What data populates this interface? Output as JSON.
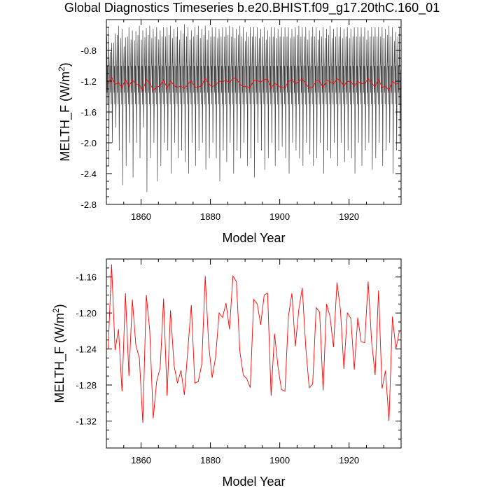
{
  "chart_data": [
    {
      "type": "line",
      "title": "Global Diagnostics Timeseries b.e20.BHIST.f09_g17.20thC.160_01",
      "xlabel": "Model Year",
      "ylabel": "MELTH_F (W/m2)",
      "ylabel_main": "MELTH_F (W/m",
      "ylabel_sup": "2",
      "ylabel_close": ")",
      "xlim": [
        1850,
        1935
      ],
      "ylim": [
        -2.8,
        -0.4
      ],
      "xticks": [
        1860,
        1880,
        1900,
        1920
      ],
      "xtick_labels": [
        "1860",
        "1880",
        "1900",
        "1920"
      ],
      "yticks": [
        -2.8,
        -2.4,
        -2.0,
        -1.6,
        -1.2,
        -0.8
      ],
      "ytick_labels": [
        "-2.8",
        "-2.4",
        "-2.0",
        "-1.6",
        "-1.2",
        "-0.8"
      ],
      "series": [
        {
          "style": "monthly",
          "color": "#000000",
          "values_monthly": {
            "year_start": 1850,
            "year_end": 1934,
            "annual_peak_high": [
              -0.62,
              -0.82,
              -0.7,
              -0.6,
              -0.64,
              -0.75,
              -0.62,
              -0.66,
              -0.67,
              -0.6,
              -0.66,
              -0.63,
              -0.6,
              -0.64,
              -0.62,
              -0.66,
              -0.62,
              -0.62,
              -0.6,
              -0.64,
              -0.62,
              -0.66,
              -0.58,
              -0.62,
              -0.66,
              -0.62,
              -0.6,
              -0.64,
              -0.6,
              -0.66,
              -0.62,
              -0.62,
              -0.64,
              -0.62,
              -0.62,
              -0.6,
              -0.62,
              -0.64,
              -0.6,
              -0.62,
              -0.68,
              -0.62,
              -0.62,
              -0.62,
              -0.64,
              -0.62,
              -0.66,
              -0.62,
              -0.62,
              -0.64,
              -0.62,
              -0.62,
              -0.62,
              -0.64,
              -0.62,
              -0.6,
              -0.62,
              -0.62,
              -0.66,
              -0.62,
              -0.62,
              -0.66,
              -0.62,
              -0.64,
              -0.6,
              -0.64,
              -0.62,
              -0.62,
              -0.64,
              -0.62,
              -0.64,
              -0.62,
              -0.62,
              -0.62,
              -0.62,
              -0.66,
              -0.62,
              -0.62,
              -0.62,
              -0.62,
              -0.64,
              -0.6,
              -0.62,
              -0.68,
              -0.62
            ],
            "annual_trough_low": [
              -2.3,
              -2.0,
              -1.8,
              -2.1,
              -2.55,
              -2.3,
              -2.0,
              -2.45,
              -2.0,
              -2.2,
              -1.8,
              -2.64,
              -2.2,
              -2.0,
              -2.5,
              -2.3,
              -2.0,
              -2.1,
              -2.4,
              -2.0,
              -2.2,
              -2.1,
              -2.25,
              -2.4,
              -2.0,
              -2.3,
              -2.1,
              -2.0,
              -2.35,
              -2.2,
              -2.0,
              -2.2,
              -2.5,
              -2.1,
              -2.25,
              -2.0,
              -2.4,
              -2.1,
              -2.2,
              -2.0,
              -2.3,
              -2.2,
              -2.45,
              -2.0,
              -2.1,
              -2.35,
              -2.2,
              -2.0,
              -2.3,
              -2.1,
              -2.05,
              -2.2,
              -2.4,
              -2.0,
              -2.1,
              -2.2,
              -2.3,
              -2.0,
              -2.15,
              -2.3,
              -2.2,
              -2.0,
              -2.4,
              -2.1,
              -2.2,
              -2.0,
              -2.3,
              -2.0,
              -2.25,
              -2.1,
              -2.2,
              -2.4,
              -2.0,
              -2.3,
              -2.1,
              -2.0,
              -2.35,
              -2.2,
              -2.0,
              -2.3,
              -2.1,
              -2.0,
              -2.4,
              -2.1,
              -2.0
            ],
            "band_upper": -0.95,
            "band_lower": -1.5
          }
        },
        {
          "style": "annual",
          "color": "#ff0000",
          "x": [
            1850,
            1851,
            1852,
            1853,
            1854,
            1855,
            1856,
            1857,
            1858,
            1859,
            1860,
            1861,
            1862,
            1863,
            1864,
            1865,
            1866,
            1867,
            1868,
            1869,
            1870,
            1871,
            1872,
            1873,
            1874,
            1875,
            1876,
            1877,
            1878,
            1879,
            1880,
            1881,
            1882,
            1883,
            1884,
            1885,
            1886,
            1887,
            1888,
            1889,
            1890,
            1891,
            1892,
            1893,
            1894,
            1895,
            1896,
            1897,
            1898,
            1899,
            1900,
            1901,
            1902,
            1903,
            1904,
            1905,
            1906,
            1907,
            1908,
            1909,
            1910,
            1911,
            1912,
            1913,
            1914,
            1915,
            1916,
            1917,
            1918,
            1919,
            1920,
            1921,
            1922,
            1923,
            1924,
            1925,
            1926,
            1927,
            1928,
            1929,
            1930,
            1931,
            1932,
            1933,
            1934
          ],
          "values": [
            -1.24,
            -1.146,
            -1.241,
            -1.218,
            -1.287,
            -1.178,
            -1.27,
            -1.185,
            -1.236,
            -1.25,
            -1.322,
            -1.18,
            -1.219,
            -1.317,
            -1.276,
            -1.261,
            -1.184,
            -1.292,
            -1.197,
            -1.258,
            -1.278,
            -1.264,
            -1.291,
            -1.24,
            -1.191,
            -1.278,
            -1.276,
            -1.257,
            -1.159,
            -1.235,
            -1.272,
            -1.249,
            -1.2,
            -1.205,
            -1.189,
            -1.218,
            -1.159,
            -1.165,
            -1.243,
            -1.269,
            -1.273,
            -1.283,
            -1.185,
            -1.19,
            -1.213,
            -1.18,
            -1.178,
            -1.292,
            -1.223,
            -1.26,
            -1.285,
            -1.287,
            -1.204,
            -1.178,
            -1.237,
            -1.196,
            -1.172,
            -1.238,
            -1.283,
            -1.279,
            -1.194,
            -1.199,
            -1.286,
            -1.19,
            -1.204,
            -1.238,
            -1.166,
            -1.196,
            -1.262,
            -1.2,
            -1.206,
            -1.263,
            -1.205,
            -1.232,
            -1.233,
            -1.165,
            -1.232,
            -1.269,
            -1.175,
            -1.284,
            -1.264,
            -1.32,
            -1.204,
            -1.24,
            -1.22
          ]
        }
      ]
    },
    {
      "type": "line",
      "title": "",
      "xlabel": "Model Year",
      "ylabel": "MELTH_F (W/m2)",
      "ylabel_main": "MELTH_F (W/m",
      "ylabel_sup": "2",
      "ylabel_close": ")",
      "xlim": [
        1850,
        1935
      ],
      "ylim": [
        -1.35,
        -1.14
      ],
      "xticks": [
        1860,
        1880,
        1900,
        1920
      ],
      "xtick_labels": [
        "1860",
        "1880",
        "1900",
        "1920"
      ],
      "yticks": [
        -1.32,
        -1.28,
        -1.24,
        -1.2,
        -1.16
      ],
      "ytick_labels": [
        "-1.32",
        "-1.28",
        "-1.24",
        "-1.20",
        "-1.16"
      ],
      "series": [
        {
          "style": "annual",
          "color": "#ff0000",
          "x": [
            1850,
            1851,
            1852,
            1853,
            1854,
            1855,
            1856,
            1857,
            1858,
            1859,
            1860,
            1861,
            1862,
            1863,
            1864,
            1865,
            1866,
            1867,
            1868,
            1869,
            1870,
            1871,
            1872,
            1873,
            1874,
            1875,
            1876,
            1877,
            1878,
            1879,
            1880,
            1881,
            1882,
            1883,
            1884,
            1885,
            1886,
            1887,
            1888,
            1889,
            1890,
            1891,
            1892,
            1893,
            1894,
            1895,
            1896,
            1897,
            1898,
            1899,
            1900,
            1901,
            1902,
            1903,
            1904,
            1905,
            1906,
            1907,
            1908,
            1909,
            1910,
            1911,
            1912,
            1913,
            1914,
            1915,
            1916,
            1917,
            1918,
            1919,
            1920,
            1921,
            1922,
            1923,
            1924,
            1925,
            1926,
            1927,
            1928,
            1929,
            1930,
            1931,
            1932,
            1933,
            1934
          ],
          "values": [
            -1.24,
            -1.146,
            -1.241,
            -1.218,
            -1.287,
            -1.178,
            -1.27,
            -1.185,
            -1.236,
            -1.25,
            -1.322,
            -1.18,
            -1.219,
            -1.317,
            -1.276,
            -1.261,
            -1.184,
            -1.292,
            -1.197,
            -1.258,
            -1.278,
            -1.264,
            -1.291,
            -1.24,
            -1.191,
            -1.278,
            -1.276,
            -1.257,
            -1.159,
            -1.235,
            -1.272,
            -1.249,
            -1.2,
            -1.205,
            -1.189,
            -1.218,
            -1.159,
            -1.165,
            -1.243,
            -1.269,
            -1.273,
            -1.283,
            -1.185,
            -1.19,
            -1.213,
            -1.18,
            -1.178,
            -1.292,
            -1.223,
            -1.26,
            -1.285,
            -1.287,
            -1.204,
            -1.178,
            -1.237,
            -1.196,
            -1.172,
            -1.238,
            -1.283,
            -1.279,
            -1.194,
            -1.199,
            -1.286,
            -1.19,
            -1.204,
            -1.238,
            -1.166,
            -1.196,
            -1.262,
            -1.2,
            -1.206,
            -1.263,
            -1.205,
            -1.232,
            -1.233,
            -1.165,
            -1.232,
            -1.269,
            -1.175,
            -1.284,
            -1.264,
            -1.32,
            -1.204,
            -1.24,
            -1.22
          ]
        }
      ]
    }
  ]
}
